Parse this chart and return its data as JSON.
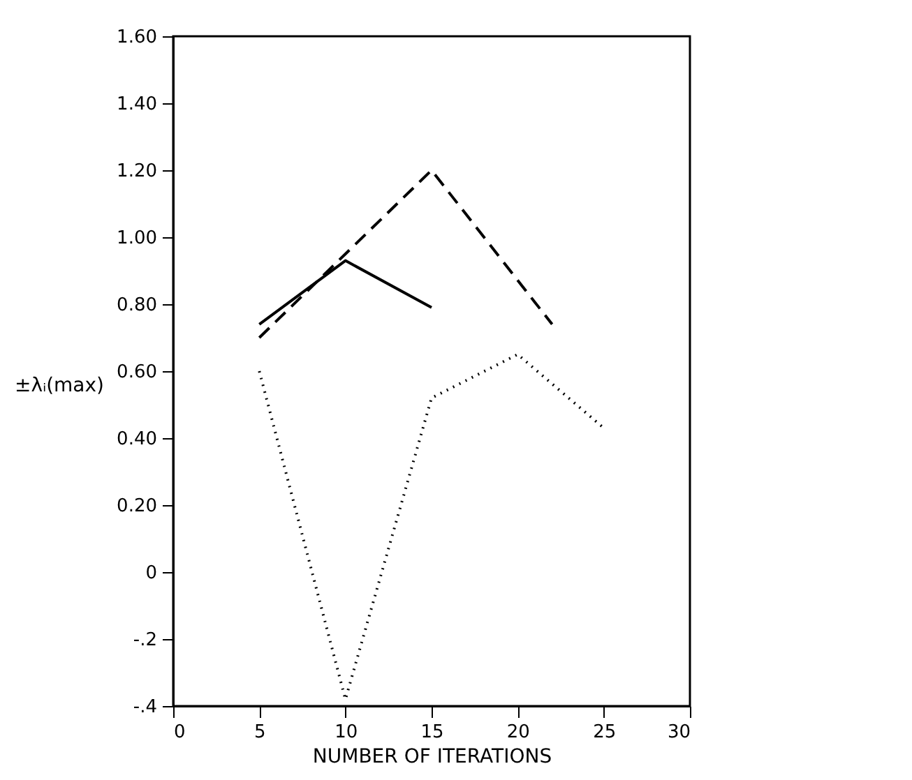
{
  "chart_data": {
    "type": "line",
    "xlabel": "NUMBER OF ITERATIONS",
    "ylabel": "±λᵢ(max)",
    "xlim": [
      0,
      30
    ],
    "xticks": [
      0,
      5,
      10,
      15,
      20,
      25,
      30
    ],
    "ylim": [
      -0.4,
      1.6
    ],
    "yticks": [
      {
        "value": -0.4,
        "label": "-.4"
      },
      {
        "value": -0.2,
        "label": "-.2"
      },
      0,
      {
        "value": 0.2,
        "label": "0.20"
      },
      {
        "value": 0.4,
        "label": "0.40"
      },
      {
        "value": 0.6,
        "label": "0.60"
      },
      {
        "value": 0.8,
        "label": "0.80"
      },
      {
        "value": 1.0,
        "label": "1.00"
      },
      {
        "value": 1.2,
        "label": "1.20"
      },
      {
        "value": 1.4,
        "label": "1.40"
      },
      {
        "value": 1.6,
        "label": "1.60"
      }
    ],
    "grid": false,
    "marker": "none",
    "series": [
      {
        "color": "#000000",
        "line_style": "solid",
        "x": [
          5,
          10,
          15
        ],
        "values": [
          0.74,
          0.93,
          0.79
        ]
      },
      {
        "color": "#000000",
        "line_style": "dashed",
        "x": [
          5,
          10,
          15,
          22
        ],
        "values": [
          0.7,
          0.95,
          1.2,
          0.74
        ]
      },
      {
        "color": "#000000",
        "line_style": "dotted",
        "x": [
          5,
          10,
          15,
          20,
          25
        ],
        "values": [
          0.6,
          -0.38,
          0.52,
          0.65,
          0.43
        ]
      }
    ]
  }
}
